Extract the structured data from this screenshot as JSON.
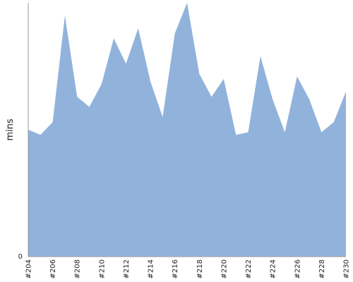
{
  "chart_data": {
    "type": "area",
    "title": "",
    "xlabel": "",
    "ylabel": "mins",
    "grid": false,
    "series_color": "#91b3db",
    "axis_color": "#999999",
    "x": [
      "#204",
      "#205",
      "#206",
      "#207",
      "#208",
      "#209",
      "#210",
      "#211",
      "#212",
      "#213",
      "#214",
      "#215",
      "#216",
      "#217",
      "#218",
      "#219",
      "#220",
      "#221",
      "#222",
      "#223",
      "#224",
      "#225",
      "#226",
      "#227",
      "#228",
      "#229",
      "#230"
    ],
    "x_tick_labels": [
      "#204",
      "#206",
      "#208",
      "#210",
      "#212",
      "#214",
      "#216",
      "#218",
      "#220",
      "#222",
      "#224",
      "#226",
      "#228",
      "#230"
    ],
    "y_tick_labels": [
      "0"
    ],
    "ylim": [
      0,
      100
    ],
    "values": [
      50,
      48,
      53,
      95,
      63,
      59,
      68,
      86,
      76,
      90,
      69,
      55,
      88,
      100,
      72,
      63,
      70,
      48,
      49,
      79,
      62,
      49,
      71,
      62,
      49,
      53,
      65
    ]
  }
}
